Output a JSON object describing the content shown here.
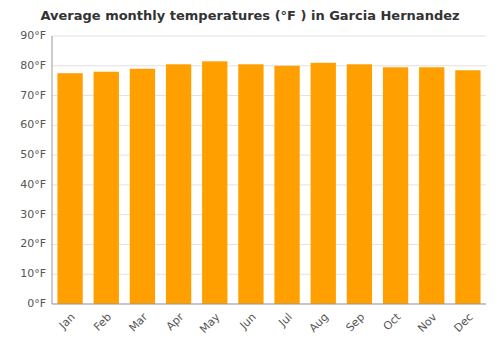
{
  "chart_data": {
    "type": "bar",
    "title": "Average monthly temperatures (°F ) in Garcia Hernandez",
    "categories": [
      "Jan",
      "Feb",
      "Mar",
      "Apr",
      "May",
      "Jun",
      "Jul",
      "Aug",
      "Sep",
      "Oct",
      "Nov",
      "Dec"
    ],
    "values": [
      77.5,
      78.0,
      79.0,
      80.5,
      81.5,
      80.5,
      80.0,
      81.0,
      80.5,
      79.5,
      79.5,
      78.5
    ],
    "color": "#FFA000",
    "ylim": [
      0,
      90
    ],
    "yticks": [
      {
        "value": 0,
        "label": "0°F"
      },
      {
        "value": 10,
        "label": "10°F"
      },
      {
        "value": 20,
        "label": "20°F"
      },
      {
        "value": 30,
        "label": "30°F"
      },
      {
        "value": 40,
        "label": "40°F"
      },
      {
        "value": 50,
        "label": "50°F"
      },
      {
        "value": 60,
        "label": "60°F"
      },
      {
        "value": 70,
        "label": "70°F"
      },
      {
        "value": 80,
        "label": "80°F"
      },
      {
        "value": 90,
        "label": "90°F"
      }
    ],
    "grid": true
  }
}
